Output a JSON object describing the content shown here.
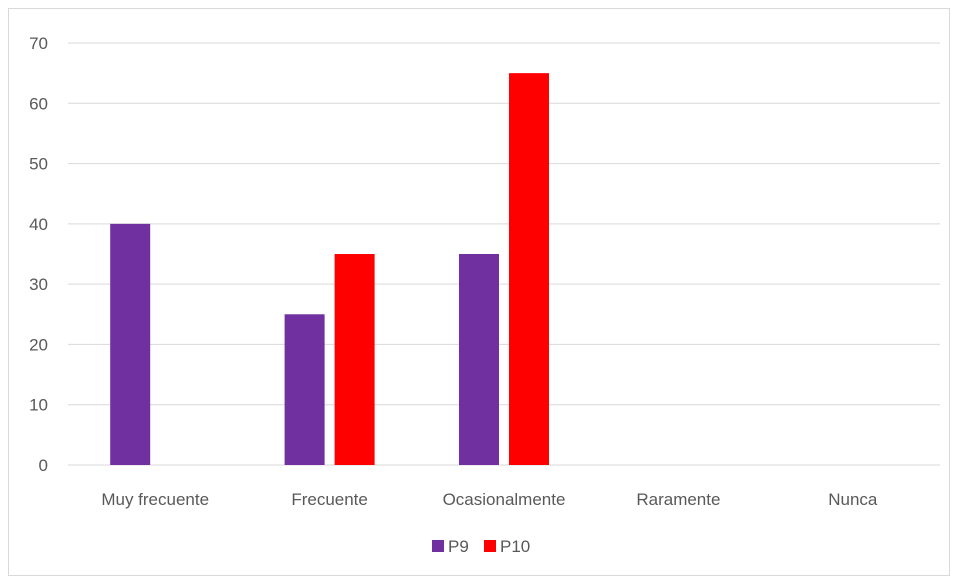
{
  "chart_data": {
    "type": "bar",
    "categories": [
      "Muy frecuente",
      "Frecuente",
      "Ocasionalmente",
      "Raramente",
      "Nunca"
    ],
    "series": [
      {
        "name": "P9",
        "values": [
          40,
          25,
          35,
          0,
          0
        ],
        "color": "#7030a0"
      },
      {
        "name": "P10",
        "values": [
          0,
          35,
          65,
          0,
          0
        ],
        "color": "#ff0000"
      }
    ],
    "ylim": [
      0,
      70
    ],
    "yticks": [
      0,
      10,
      20,
      30,
      40,
      50,
      60,
      70
    ],
    "grid": true,
    "legend": "bottom-center",
    "gridColor": "#d9d9d9",
    "tickColor": "#595959"
  }
}
